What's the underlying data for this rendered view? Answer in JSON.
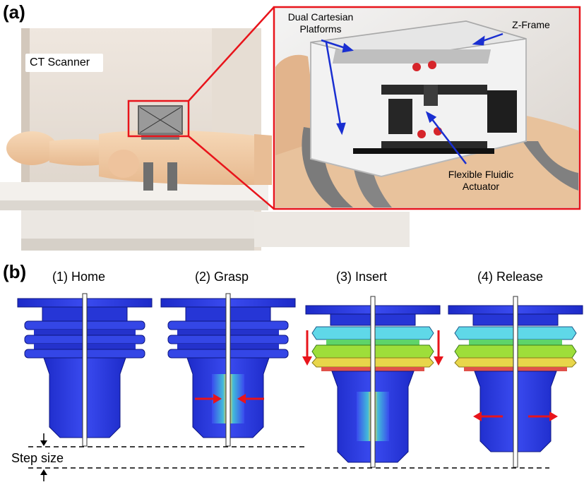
{
  "panel_a": {
    "label": "(a)",
    "scanner_label": "CT Scanner",
    "callouts": {
      "platforms_line1": "Dual Cartesian",
      "platforms_line2": "Platforms",
      "zframe": "Z-Frame",
      "actuator_line1": "Flexible Fluidic",
      "actuator_line2": "Actuator"
    }
  },
  "panel_b": {
    "label": "(b)",
    "stages": [
      {
        "label": "(1) Home"
      },
      {
        "label": "(2) Grasp"
      },
      {
        "label": "(3) Insert"
      },
      {
        "label": "(4) Release"
      }
    ],
    "step_label": "Step size"
  },
  "colors": {
    "frame_red": "#e8141b",
    "callout_blue": "#1a2fd1",
    "actuator_blue": "#2b3fe0",
    "skin": "#f2cda6"
  }
}
